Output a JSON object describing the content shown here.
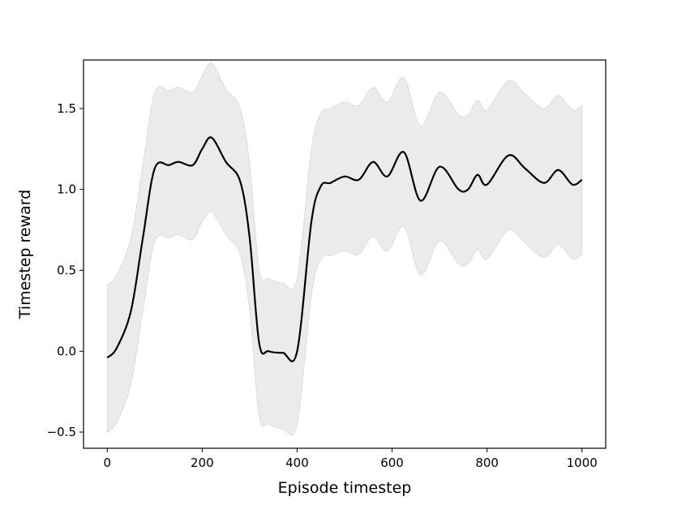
{
  "chart_data": {
    "type": "line",
    "title": "",
    "xlabel": "Episode timestep",
    "ylabel": "Timestep reward",
    "xlim": [
      -50,
      1050
    ],
    "ylim": [
      -0.6,
      1.8
    ],
    "xticks": [
      0,
      200,
      400,
      600,
      800,
      1000
    ],
    "yticks": [
      -0.5,
      0.0,
      0.5,
      1.0,
      1.5
    ],
    "xtick_labels": [
      "0",
      "200",
      "400",
      "600",
      "800",
      "1000"
    ],
    "ytick_labels": [
      "−0.5",
      "0.0",
      "0.5",
      "1.0",
      "1.5"
    ],
    "grid": false,
    "legend": "none",
    "series": [
      {
        "mean_color": "#000000",
        "band_color": "#ebebeb",
        "x": [
          0,
          20,
          50,
          75,
          100,
          130,
          150,
          180,
          200,
          220,
          250,
          280,
          300,
          320,
          340,
          370,
          400,
          430,
          450,
          470,
          500,
          530,
          560,
          590,
          625,
          660,
          700,
          740,
          760,
          780,
          800,
          845,
          880,
          920,
          950,
          980,
          1000
        ],
        "mean": [
          -0.04,
          0.02,
          0.25,
          0.7,
          1.13,
          1.15,
          1.17,
          1.15,
          1.25,
          1.32,
          1.17,
          1.05,
          0.7,
          0.05,
          0.0,
          -0.01,
          0.0,
          0.8,
          1.02,
          1.04,
          1.08,
          1.06,
          1.17,
          1.08,
          1.23,
          0.93,
          1.14,
          1.0,
          1.0,
          1.09,
          1.03,
          1.21,
          1.13,
          1.04,
          1.12,
          1.03,
          1.06
        ],
        "upper": [
          0.41,
          0.47,
          0.7,
          1.15,
          1.6,
          1.61,
          1.63,
          1.6,
          1.7,
          1.78,
          1.62,
          1.5,
          1.15,
          0.5,
          0.45,
          0.42,
          0.45,
          1.25,
          1.47,
          1.5,
          1.54,
          1.52,
          1.63,
          1.54,
          1.69,
          1.39,
          1.6,
          1.46,
          1.46,
          1.55,
          1.49,
          1.67,
          1.59,
          1.5,
          1.58,
          1.49,
          1.52
        ],
        "lower": [
          -0.5,
          -0.44,
          -0.2,
          0.25,
          0.68,
          0.7,
          0.72,
          0.69,
          0.8,
          0.86,
          0.72,
          0.6,
          0.25,
          -0.4,
          -0.45,
          -0.48,
          -0.45,
          0.35,
          0.57,
          0.59,
          0.62,
          0.6,
          0.71,
          0.62,
          0.77,
          0.47,
          0.68,
          0.54,
          0.54,
          0.63,
          0.57,
          0.75,
          0.67,
          0.58,
          0.66,
          0.57,
          0.6
        ]
      }
    ]
  }
}
